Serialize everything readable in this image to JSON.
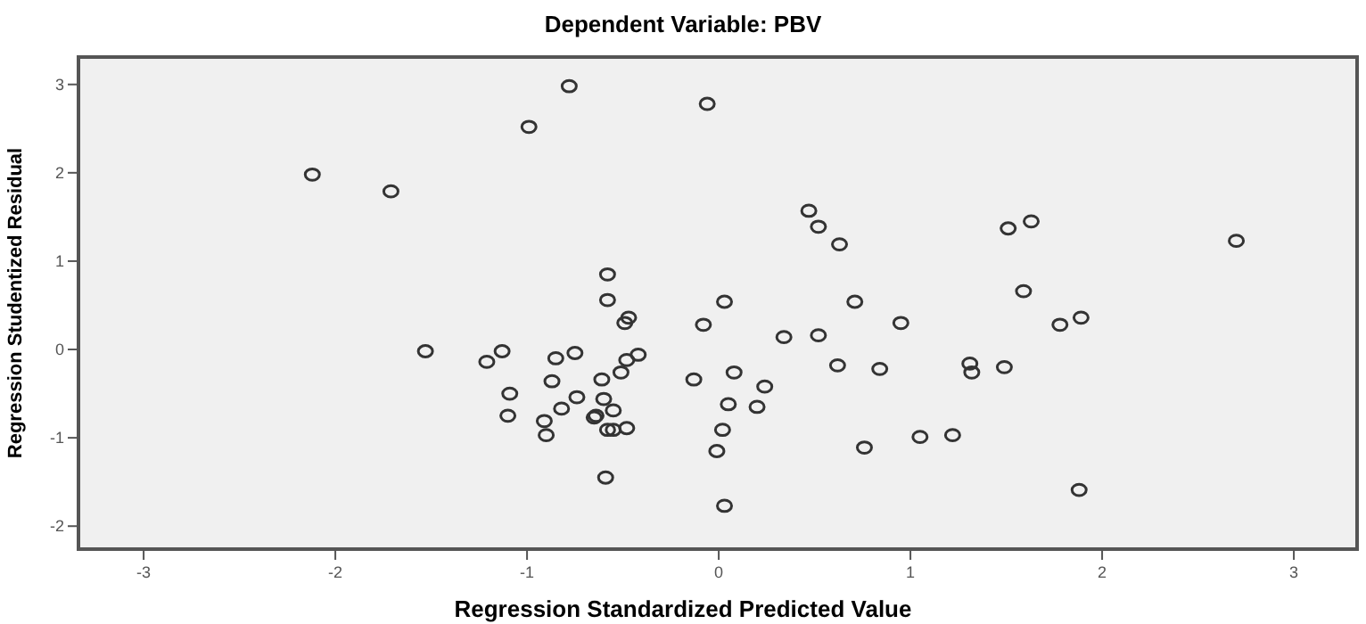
{
  "chart_data": {
    "type": "scatter",
    "title": "Dependent Variable: PBV",
    "xlabel": "Regression Standardized Predicted Value",
    "ylabel": "Regression Studentized Residual",
    "xlim": [
      -3.34,
      3.33
    ],
    "ylim": [
      -2.26,
      3.31
    ],
    "xticks": [
      -3,
      -2,
      -1,
      0,
      1,
      2,
      3
    ],
    "yticks": [
      -2,
      -1,
      0,
      1,
      2,
      3
    ],
    "grid": false,
    "marker": "circle",
    "series": [
      {
        "color": "#333333",
        "x": [
          -2.12,
          -1.71,
          -0.99,
          -0.78,
          -0.58,
          -0.58,
          -0.06,
          0.47,
          0.52,
          0.63,
          1.51,
          1.63,
          2.7,
          0.03,
          0.71,
          1.59,
          -0.08,
          0.95,
          0.34,
          0.52,
          1.78,
          1.89,
          -0.13,
          0.08,
          0.24,
          0.05,
          0.2,
          0.62,
          0.84,
          1.31,
          1.32,
          1.49,
          0.02,
          -0.01,
          0.76,
          1.05,
          1.22,
          1.88,
          0.03,
          -1.53,
          -1.21,
          -1.13,
          -1.09,
          -1.1,
          -0.85,
          -0.75,
          -0.87,
          -0.74,
          -0.82,
          -0.91,
          -0.9,
          -0.65,
          -0.64,
          -0.61,
          -0.6,
          -0.55,
          -0.58,
          -0.55,
          -0.48,
          -0.51,
          -0.48,
          -0.42,
          -0.59,
          -0.49,
          -0.47
        ],
        "values": [
          1.98,
          1.79,
          2.52,
          2.98,
          0.85,
          0.56,
          2.78,
          1.57,
          1.39,
          1.19,
          1.37,
          1.45,
          1.23,
          0.54,
          0.54,
          0.66,
          0.28,
          0.3,
          0.14,
          0.16,
          0.28,
          0.36,
          -0.34,
          -0.26,
          -0.42,
          -0.62,
          -0.65,
          -0.18,
          -0.22,
          -0.16,
          -0.26,
          -0.2,
          -0.91,
          -1.15,
          -1.11,
          -0.99,
          -0.97,
          -1.59,
          -1.77,
          -0.02,
          -0.14,
          -0.02,
          -0.5,
          -0.75,
          -0.1,
          -0.04,
          -0.36,
          -0.54,
          -0.67,
          -0.81,
          -0.97,
          -0.77,
          -0.75,
          -0.34,
          -0.56,
          -0.69,
          -0.91,
          -0.91,
          -0.89,
          -0.26,
          -0.12,
          -0.06,
          -1.45,
          0.3,
          0.36
        ]
      }
    ]
  }
}
